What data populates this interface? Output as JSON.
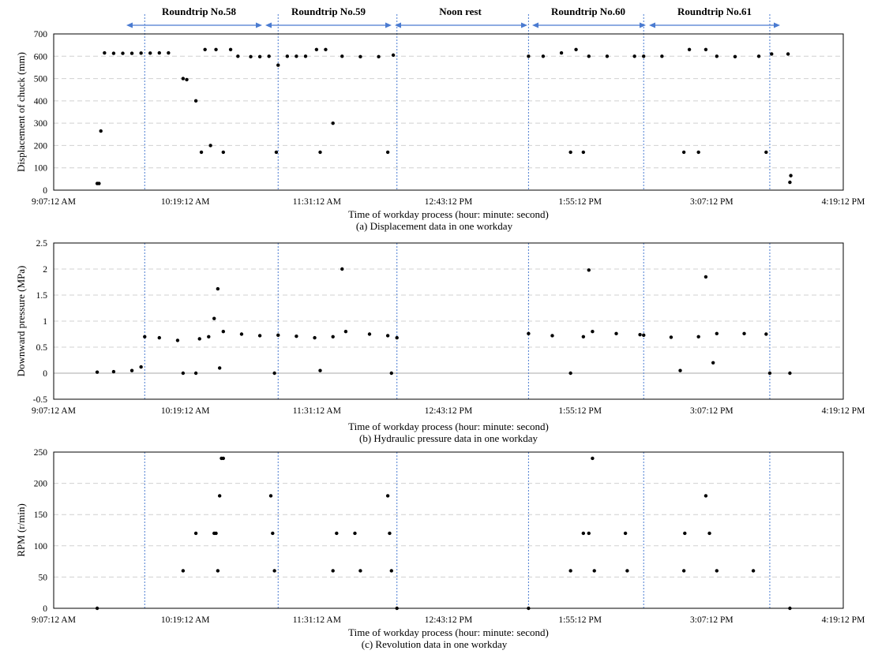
{
  "colors": {
    "marker": "#000000",
    "grid": "#d0d0d0",
    "divider": "#4a7bd1",
    "phase_arrow": "#4a7bd1",
    "zero_line": "#a8a8a8"
  },
  "phases": [
    "Roundtrip  No.58",
    "Roundtrip  No.59",
    "Noon rest",
    "Roundtrip  No.60",
    "Roundtrip  No.61"
  ],
  "divider_times": [
    "9:57:00",
    "11:10:00",
    "12:15:00",
    "13:27:00",
    "14:30:00",
    "15:39:00"
  ],
  "chart_data": [
    {
      "type": "scatter",
      "id": "displacement",
      "caption": "(a) Displacement data in one workday",
      "xlabel": "Time of workday process (hour: minute: second)",
      "ylabel": "Displacement of chuck (mm)",
      "x_ticks": [
        "9:07:12 AM",
        "10:19:12 AM",
        "11:31:12 AM",
        "12:43:12 PM",
        "1:55:12 PM",
        "3:07:12 PM",
        "4:19:12 PM"
      ],
      "y_ticks": [
        "0",
        "100",
        "200",
        "300",
        "400",
        "500",
        "600",
        "700"
      ],
      "ylim": [
        0,
        700
      ],
      "xlim": [
        "9:07:12",
        "16:19:12"
      ],
      "grid": true,
      "series": [
        {
          "name": "Displacement (mm)",
          "samples": [
            [
              "9:31:00",
              30
            ],
            [
              "9:32:00",
              30
            ],
            [
              "9:33:00",
              265
            ],
            [
              "9:35:00",
              615
            ],
            [
              "9:40:00",
              613
            ],
            [
              "9:45:00",
              613
            ],
            [
              "9:50:00",
              613
            ],
            [
              "9:55:00",
              614
            ],
            [
              "10:00:00",
              614
            ],
            [
              "10:05:00",
              615
            ],
            [
              "10:10:00",
              615
            ],
            [
              "10:18:00",
              500
            ],
            [
              "10:20:00",
              495
            ],
            [
              "10:25:00",
              400
            ],
            [
              "10:28:00",
              170
            ],
            [
              "10:30:00",
              630
            ],
            [
              "10:33:00",
              200
            ],
            [
              "10:36:00",
              630
            ],
            [
              "10:40:00",
              170
            ],
            [
              "10:44:00",
              630
            ],
            [
              "10:48:00",
              600
            ],
            [
              "10:55:00",
              598
            ],
            [
              "11:00:00",
              598
            ],
            [
              "11:05:00",
              600
            ],
            [
              "11:09:00",
              170
            ],
            [
              "11:10:00",
              560
            ],
            [
              "11:15:00",
              600
            ],
            [
              "11:20:00",
              600
            ],
            [
              "11:25:00",
              600
            ],
            [
              "11:31:00",
              630
            ],
            [
              "11:33:00",
              170
            ],
            [
              "11:36:00",
              630
            ],
            [
              "11:40:00",
              300
            ],
            [
              "11:45:00",
              600
            ],
            [
              "11:55:00",
              598
            ],
            [
              "12:05:00",
              598
            ],
            [
              "12:10:00",
              170
            ],
            [
              "12:13:00",
              605
            ],
            [
              "13:27:00",
              600
            ],
            [
              "13:35:00",
              600
            ],
            [
              "13:45:00",
              615
            ],
            [
              "13:50:00",
              170
            ],
            [
              "13:53:00",
              630
            ],
            [
              "13:57:00",
              170
            ],
            [
              "14:00:00",
              600
            ],
            [
              "14:10:00",
              600
            ],
            [
              "14:25:00",
              600
            ],
            [
              "14:30:00",
              600
            ],
            [
              "14:40:00",
              600
            ],
            [
              "14:52:00",
              170
            ],
            [
              "14:55:00",
              630
            ],
            [
              "15:00:00",
              170
            ],
            [
              "15:04:00",
              630
            ],
            [
              "15:10:00",
              600
            ],
            [
              "15:20:00",
              598
            ],
            [
              "15:33:00",
              600
            ],
            [
              "15:37:00",
              170
            ],
            [
              "15:40:00",
              610
            ],
            [
              "15:49:00",
              610
            ],
            [
              "15:50:00",
              35
            ],
            [
              "15:50:30",
              65
            ]
          ]
        }
      ]
    },
    {
      "type": "scatter",
      "id": "pressure",
      "caption": "(b) Hydraulic pressure data in one workday",
      "xlabel": "Time of workday process (hour: minute: second)",
      "ylabel": "Downward pressure (MPa)",
      "x_ticks": [
        "9:07:12 AM",
        "10:19:12 AM",
        "11:31:12 AM",
        "12:43:12 PM",
        "1:55:12 PM",
        "3:07:12 PM",
        "4:19:12 PM"
      ],
      "y_ticks": [
        "-0.5",
        "0",
        "0.5",
        "1",
        "1.5",
        "2",
        "2.5"
      ],
      "ylim": [
        -0.5,
        2.5
      ],
      "xlim": [
        "9:07:12",
        "16:19:12"
      ],
      "grid": true,
      "series": [
        {
          "name": "Pressure (MPa)",
          "samples": [
            [
              "9:31:00",
              0.02
            ],
            [
              "9:40:00",
              0.03
            ],
            [
              "9:50:00",
              0.05
            ],
            [
              "9:55:00",
              0.12
            ],
            [
              "9:57:00",
              0.7
            ],
            [
              "10:05:00",
              0.68
            ],
            [
              "10:15:00",
              0.63
            ],
            [
              "10:18:00",
              0.0
            ],
            [
              "10:25:00",
              0.0
            ],
            [
              "10:27:00",
              0.66
            ],
            [
              "10:32:00",
              0.7
            ],
            [
              "10:35:00",
              1.05
            ],
            [
              "10:37:00",
              1.62
            ],
            [
              "10:38:00",
              0.1
            ],
            [
              "10:40:00",
              0.8
            ],
            [
              "10:50:00",
              0.75
            ],
            [
              "11:00:00",
              0.72
            ],
            [
              "11:08:00",
              0.0
            ],
            [
              "11:10:00",
              0.73
            ],
            [
              "11:20:00",
              0.71
            ],
            [
              "11:30:00",
              0.68
            ],
            [
              "11:33:00",
              0.05
            ],
            [
              "11:40:00",
              0.7
            ],
            [
              "11:45:00",
              2.0
            ],
            [
              "11:47:00",
              0.8
            ],
            [
              "12:00:00",
              0.75
            ],
            [
              "12:10:00",
              0.72
            ],
            [
              "12:12:00",
              0.0
            ],
            [
              "12:15:00",
              0.68
            ],
            [
              "13:27:00",
              0.76
            ],
            [
              "13:40:00",
              0.72
            ],
            [
              "13:50:00",
              0.0
            ],
            [
              "13:57:00",
              0.7
            ],
            [
              "14:00:00",
              1.98
            ],
            [
              "14:02:00",
              0.8
            ],
            [
              "14:15:00",
              0.76
            ],
            [
              "14:28:00",
              0.74
            ],
            [
              "14:30:00",
              0.73
            ],
            [
              "14:45:00",
              0.69
            ],
            [
              "14:50:00",
              0.05
            ],
            [
              "15:00:00",
              0.7
            ],
            [
              "15:04:00",
              1.85
            ],
            [
              "15:08:00",
              0.2
            ],
            [
              "15:10:00",
              0.76
            ],
            [
              "15:25:00",
              0.76
            ],
            [
              "15:37:00",
              0.75
            ],
            [
              "15:39:00",
              0.0
            ],
            [
              "15:50:00",
              0.0
            ]
          ]
        }
      ]
    },
    {
      "type": "scatter",
      "id": "rpm",
      "caption": "(c) Revolution data in one workday",
      "xlabel": "Time of workday process (hour: minute: second)",
      "ylabel": "RPM (r/min)",
      "x_ticks": [
        "9:07:12 AM",
        "10:19:12 AM",
        "11:31:12 AM",
        "12:43:12 PM",
        "1:55:12 PM",
        "3:07:12 PM",
        "4:19:12 PM"
      ],
      "y_ticks": [
        "0",
        "50",
        "100",
        "150",
        "200",
        "250"
      ],
      "ylim": [
        0,
        250
      ],
      "xlim": [
        "9:07:12",
        "16:19:12"
      ],
      "grid": true,
      "series": [
        {
          "name": "RPM (r/min)",
          "samples": [
            [
              "9:31:00",
              0
            ],
            [
              "12:15:00",
              0
            ],
            [
              "13:27:00",
              0
            ],
            [
              "15:50:00",
              0
            ],
            [
              "10:18:00",
              60
            ],
            [
              "10:37:00",
              60
            ],
            [
              "10:25:00",
              120
            ],
            [
              "10:35:00",
              120
            ],
            [
              "10:36:00",
              120
            ],
            [
              "10:38:00",
              180
            ],
            [
              "10:39:00",
              240
            ],
            [
              "10:40:00",
              240
            ],
            [
              "11:06:00",
              180
            ],
            [
              "11:07:00",
              120
            ],
            [
              "11:08:00",
              60
            ],
            [
              "11:40:00",
              60
            ],
            [
              "11:55:00",
              60
            ],
            [
              "11:42:00",
              120
            ],
            [
              "11:52:00",
              120
            ],
            [
              "12:10:00",
              180
            ],
            [
              "12:11:00",
              120
            ],
            [
              "12:12:00",
              60
            ],
            [
              "13:50:00",
              60
            ],
            [
              "14:03:00",
              60
            ],
            [
              "13:57:00",
              120
            ],
            [
              "14:00:00",
              120
            ],
            [
              "14:02:00",
              240
            ],
            [
              "14:20:00",
              120
            ],
            [
              "14:21:00",
              60
            ],
            [
              "14:52:00",
              60
            ],
            [
              "15:10:00",
              60
            ],
            [
              "14:52:30",
              120
            ],
            [
              "15:06:00",
              120
            ],
            [
              "15:04:00",
              180
            ],
            [
              "15:30:00",
              60
            ]
          ]
        }
      ]
    }
  ]
}
